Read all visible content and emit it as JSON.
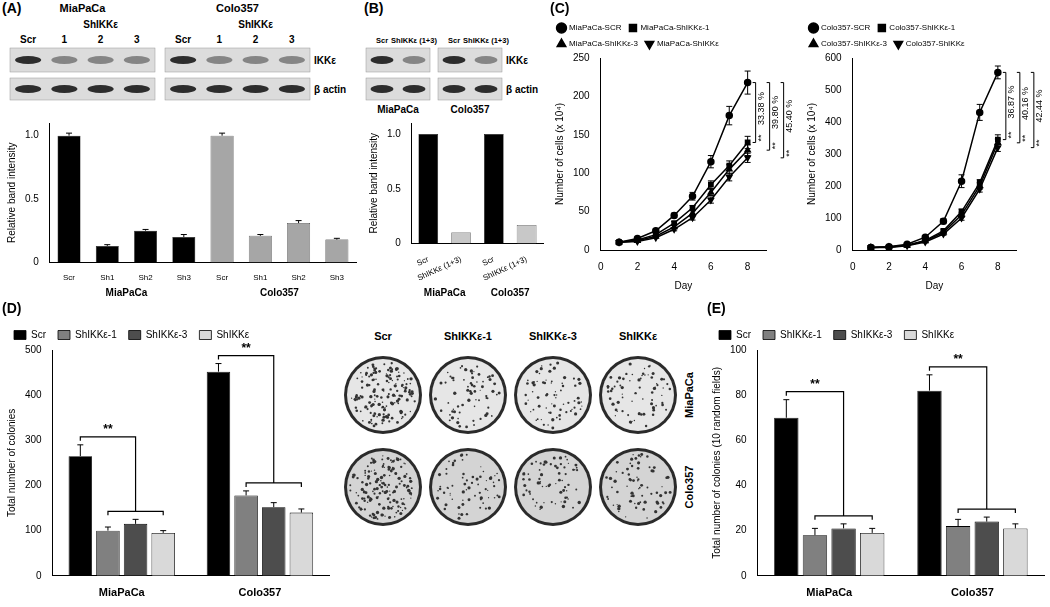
{
  "chart_data": [
    {
      "panel": "(A)",
      "type": "bar",
      "y_label": "Relative band intensity",
      "categories": [
        "Scr",
        "Sh1",
        "Sh2",
        "Sh3",
        "Scr",
        "Sh1",
        "Sh2",
        "Sh3"
      ],
      "category_groups": [
        "MiaPaCa",
        "Colo357"
      ],
      "values": [
        1.0,
        0.13,
        0.25,
        0.2,
        1.0,
        0.21,
        0.31,
        0.18
      ],
      "errors": [
        0.02,
        0.01,
        0.01,
        0.02,
        0.02,
        0.01,
        0.02,
        0.01
      ],
      "colors": [
        "#000000",
        "#000000",
        "#000000",
        "#000000",
        "#a6a6a6",
        "#a6a6a6",
        "#a6a6a6",
        "#a6a6a6"
      ],
      "ylim": [
        0,
        1.1
      ],
      "yticks": [
        0,
        0.5,
        {
          "value": 1,
          "label": "1.0"
        }
      ],
      "grid": false
    },
    {
      "panel": "(B)",
      "type": "bar",
      "y_label": "Relative band intensity",
      "categories": [
        "Scr",
        "ShIKKε (1+3)",
        "Scr",
        "ShIKKε (1+3)"
      ],
      "category_groups": [
        "MiaPaCa",
        "Colo357"
      ],
      "values": [
        1.0,
        0.1,
        1.0,
        0.17
      ],
      "colors": [
        "#000000",
        "#c8c8c8",
        "#000000",
        "#c8c8c8"
      ],
      "ylim": [
        0,
        1.1
      ],
      "yticks": [
        0,
        0.5,
        {
          "value": 1,
          "label": "1.0"
        }
      ],
      "grid": false
    },
    {
      "panel": "(C)",
      "type": "line",
      "x_label": "Day",
      "y_label": "Number of cells (x 10⁴)",
      "x": [
        1,
        2,
        3,
        4,
        5,
        6,
        7,
        8
      ],
      "series": [
        {
          "name": "MiaPaCa-SCR",
          "color": "#000000",
          "marker": "circle",
          "values": [
            10,
            15,
            25,
            45,
            70,
            115,
            175,
            218
          ],
          "errors": [
            1,
            1,
            2,
            3,
            5,
            8,
            12,
            15
          ]
        },
        {
          "name": "MiaPaCa-ShIKKε-1",
          "color": "#000000",
          "marker": "square",
          "values": [
            10,
            13,
            20,
            35,
            55,
            85,
            110,
            140
          ],
          "errors": [
            1,
            1,
            1,
            2,
            3,
            5,
            6,
            8
          ]
        },
        {
          "name": "MiaPaCa-ShIKKε-3",
          "color": "#000000",
          "marker": "triangle",
          "values": [
            10,
            12,
            18,
            30,
            48,
            75,
            105,
            130
          ],
          "errors": [
            1,
            1,
            1,
            2,
            3,
            4,
            6,
            7
          ]
        },
        {
          "name": "MiaPaCa-ShIKKε",
          "color": "#000000",
          "marker": "inverted_triangle",
          "values": [
            10,
            11,
            16,
            27,
            42,
            65,
            95,
            120
          ],
          "errors": [
            1,
            1,
            1,
            2,
            3,
            4,
            5,
            6
          ]
        }
      ],
      "annotations": [
        {
          "text": "33.38 %",
          "mark": "**",
          "from": "MiaPaCa-SCR",
          "to": "MiaPaCa-ShIKKε-1"
        },
        {
          "text": "39.80 %",
          "mark": "**",
          "from": "MiaPaCa-SCR",
          "to": "MiaPaCa-ShIKKε-3"
        },
        {
          "text": "45.40 %",
          "mark": "**",
          "from": "MiaPaCa-SCR",
          "to": "MiaPaCa-ShIKKε"
        }
      ],
      "xlim": [
        0,
        9
      ],
      "xticks": [
        0,
        2,
        4,
        6,
        8
      ],
      "ylim": [
        0,
        250
      ],
      "yticks": [
        0,
        50,
        100,
        150,
        200,
        250
      ],
      "grid": false,
      "legend": "upper left"
    },
    {
      "type": "line",
      "x_label": "Day",
      "y_label": "Number of cells (x 10⁴)",
      "x": [
        1,
        2,
        3,
        4,
        5,
        6,
        7,
        8
      ],
      "series": [
        {
          "name": "Colo357-SCR",
          "color": "#000000",
          "marker": "circle",
          "values": [
            8,
            10,
            18,
            40,
            90,
            215,
            430,
            555
          ],
          "errors": [
            1,
            1,
            2,
            3,
            8,
            20,
            25,
            20
          ]
        },
        {
          "name": "Colo357-ShIKKε-1",
          "color": "#000000",
          "marker": "square",
          "values": [
            8,
            9,
            15,
            30,
            60,
            120,
            210,
            345
          ],
          "errors": [
            1,
            1,
            1,
            2,
            5,
            8,
            10,
            15
          ]
        },
        {
          "name": "Colo357-ShIKKε-3",
          "color": "#000000",
          "marker": "triangle",
          "values": [
            8,
            9,
            14,
            28,
            55,
            110,
            200,
            335
          ],
          "errors": [
            1,
            1,
            1,
            2,
            4,
            8,
            10,
            12
          ]
        },
        {
          "name": "Colo357-ShIKKε",
          "color": "#000000",
          "marker": "inverted_triangle",
          "values": [
            8,
            8,
            13,
            25,
            50,
            100,
            190,
            320
          ],
          "errors": [
            1,
            1,
            1,
            2,
            4,
            7,
            9,
            12
          ]
        }
      ],
      "annotations": [
        {
          "text": "36.87 %",
          "mark": "**",
          "from": "Colo357-SCR",
          "to": "Colo357-ShIKKε-1"
        },
        {
          "text": "40.16 %",
          "mark": "**",
          "from": "Colo357-SCR",
          "to": "Colo357-ShIKKε-3"
        },
        {
          "text": "42.44 %",
          "mark": "**",
          "from": "Colo357-SCR",
          "to": "Colo357-ShIKKε"
        }
      ],
      "xlim": [
        0,
        9
      ],
      "xticks": [
        0,
        2,
        4,
        6,
        8
      ],
      "ylim": [
        0,
        600
      ],
      "yticks": [
        0,
        100,
        200,
        300,
        400,
        500,
        600
      ],
      "grid": false,
      "legend": "upper left"
    },
    {
      "panel": "(D)",
      "type": "bar",
      "y_label": "Total number of colonies",
      "categories": [
        "MiaPaCa",
        "Colo357"
      ],
      "series": [
        {
          "name": "Scr",
          "color": "#000000",
          "values": [
            265,
            452
          ],
          "errors": [
            25,
            18
          ]
        },
        {
          "name": "ShIKKε-1",
          "color": "#808080",
          "values": [
            100,
            178
          ],
          "errors": [
            8,
            10
          ]
        },
        {
          "name": "ShIKKε-3",
          "color": "#4d4d4d",
          "values": [
            115,
            152
          ],
          "errors": [
            10,
            10
          ]
        },
        {
          "name": "ShIKKε",
          "color": "#d9d9d9",
          "values": [
            95,
            140
          ],
          "errors": [
            5,
            8
          ]
        }
      ],
      "annotations": [
        {
          "category": "MiaPaCa",
          "text": "**",
          "from": "Scr",
          "to": [
            "ShIKKε-1",
            "ShIKKε-3",
            "ShIKKε"
          ]
        },
        {
          "category": "Colo357",
          "text": "**",
          "from": "Scr",
          "to": [
            "ShIKKε-1",
            "ShIKKε-3",
            "ShIKKε"
          ]
        }
      ],
      "ylim": [
        0,
        500
      ],
      "yticks": [
        0,
        100,
        200,
        300,
        400,
        500
      ],
      "grid": false,
      "legend": "upper left"
    },
    {
      "panel": "(E)",
      "type": "bar",
      "y_label": "Total number of colonies (10 random fields)",
      "categories": [
        "MiaPaCa",
        "Colo357"
      ],
      "series": [
        {
          "name": "Scr",
          "color": "#000000",
          "values": [
            70,
            82
          ],
          "errors": [
            8,
            7
          ]
        },
        {
          "name": "ShIKKε-1",
          "color": "#808080",
          "values": [
            18,
            22
          ],
          "errors": [
            3,
            3
          ]
        },
        {
          "name": "ShIKKε-3",
          "color": "#4d4d4d",
          "values": [
            21,
            24
          ],
          "errors": [
            2,
            2
          ]
        },
        {
          "name": "ShIKKε",
          "color": "#d9d9d9",
          "values": [
            19,
            21
          ],
          "errors": [
            2,
            2
          ]
        }
      ],
      "annotations": [
        {
          "category": "MiaPaCa",
          "text": "**",
          "from": "Scr",
          "to": [
            "ShIKKε-1",
            "ShIKKε-3",
            "ShIKKε"
          ]
        },
        {
          "category": "Colo357",
          "text": "**",
          "from": "Scr",
          "to": [
            "ShIKKε-1",
            "ShIKKε-3",
            "ShIKKε"
          ]
        }
      ],
      "ylim": [
        0,
        100
      ],
      "yticks": [
        0,
        20,
        40,
        60,
        80,
        100
      ],
      "grid": false,
      "legend": "upper left"
    }
  ],
  "blots": [
    {
      "panel": "(A)",
      "rows": [
        "IKKε",
        "β actin"
      ],
      "groups": [
        {
          "cell": "MiaPaCa",
          "lanes": [
            "Scr",
            "1",
            "2",
            "3"
          ],
          "lane_group": "ShIKKε"
        },
        {
          "cell": "Colo357",
          "lanes": [
            "Scr",
            "1",
            "2",
            "3"
          ],
          "lane_group": "ShIKKε"
        }
      ]
    },
    {
      "panel": "(B)",
      "rows": [
        "IKKε",
        "β actin"
      ],
      "groups": [
        {
          "cell": "MiaPaCa",
          "lanes": [
            "Scr",
            "ShIKKε (1+3)"
          ]
        },
        {
          "cell": "Colo357",
          "lanes": [
            "Scr",
            "ShIKKε (1+3)"
          ]
        }
      ]
    }
  ],
  "colony_images": {
    "columns": [
      "Scr",
      "ShIKKε-1",
      "ShIKKε-3",
      "ShIKKε"
    ],
    "rows": [
      "MiaPaCa",
      "Colo357"
    ]
  }
}
